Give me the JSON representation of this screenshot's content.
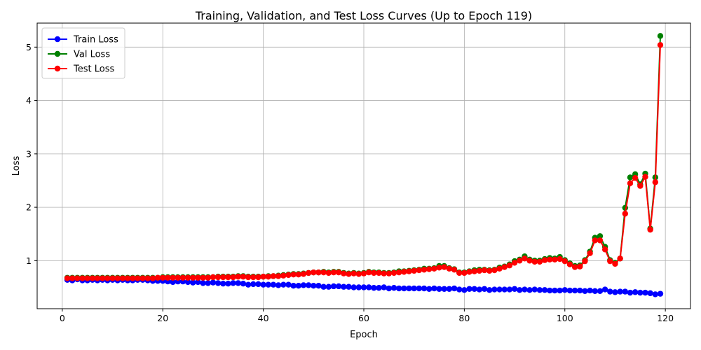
{
  "chart_data": {
    "type": "line",
    "title": "Training, Validation, and Test Loss Curves (Up to Epoch 119)",
    "xlabel": "Epoch",
    "ylabel": "Loss",
    "xlim": [
      -5,
      125
    ],
    "ylim": [
      0.1,
      5.45
    ],
    "xticks": [
      0,
      20,
      40,
      60,
      80,
      100,
      120
    ],
    "yticks": [
      1,
      2,
      3,
      4,
      5
    ],
    "grid": true,
    "legend_position": "upper-left",
    "x": [
      1,
      2,
      3,
      4,
      5,
      6,
      7,
      8,
      9,
      10,
      11,
      12,
      13,
      14,
      15,
      16,
      17,
      18,
      19,
      20,
      21,
      22,
      23,
      24,
      25,
      26,
      27,
      28,
      29,
      30,
      31,
      32,
      33,
      34,
      35,
      36,
      37,
      38,
      39,
      40,
      41,
      42,
      43,
      44,
      45,
      46,
      47,
      48,
      49,
      50,
      51,
      52,
      53,
      54,
      55,
      56,
      57,
      58,
      59,
      60,
      61,
      62,
      63,
      64,
      65,
      66,
      67,
      68,
      69,
      70,
      71,
      72,
      73,
      74,
      75,
      76,
      77,
      78,
      79,
      80,
      81,
      82,
      83,
      84,
      85,
      86,
      87,
      88,
      89,
      90,
      91,
      92,
      93,
      94,
      95,
      96,
      97,
      98,
      99,
      100,
      101,
      102,
      103,
      104,
      105,
      106,
      107,
      108,
      109,
      110,
      111,
      112,
      113,
      114,
      115,
      116,
      117,
      118,
      119
    ],
    "series": [
      {
        "name": "Train Loss",
        "color": "#0000ff",
        "values": [
          0.64,
          0.63,
          0.65,
          0.63,
          0.63,
          0.64,
          0.63,
          0.64,
          0.63,
          0.64,
          0.63,
          0.64,
          0.63,
          0.63,
          0.64,
          0.64,
          0.63,
          0.62,
          0.62,
          0.62,
          0.61,
          0.6,
          0.61,
          0.61,
          0.6,
          0.59,
          0.6,
          0.58,
          0.58,
          0.59,
          0.58,
          0.57,
          0.57,
          0.58,
          0.58,
          0.57,
          0.55,
          0.56,
          0.56,
          0.55,
          0.55,
          0.55,
          0.54,
          0.55,
          0.55,
          0.53,
          0.53,
          0.54,
          0.54,
          0.53,
          0.53,
          0.51,
          0.51,
          0.52,
          0.52,
          0.51,
          0.51,
          0.5,
          0.5,
          0.5,
          0.5,
          0.49,
          0.49,
          0.5,
          0.48,
          0.49,
          0.48,
          0.48,
          0.48,
          0.48,
          0.48,
          0.48,
          0.47,
          0.48,
          0.47,
          0.47,
          0.47,
          0.48,
          0.46,
          0.45,
          0.47,
          0.47,
          0.46,
          0.47,
          0.45,
          0.46,
          0.46,
          0.46,
          0.46,
          0.47,
          0.45,
          0.46,
          0.45,
          0.46,
          0.45,
          0.45,
          0.44,
          0.44,
          0.44,
          0.45,
          0.44,
          0.44,
          0.44,
          0.43,
          0.44,
          0.43,
          0.43,
          0.46,
          0.42,
          0.41,
          0.42,
          0.42,
          0.4,
          0.41,
          0.4,
          0.4,
          0.39,
          0.37,
          0.38
        ]
      },
      {
        "name": "Val Loss",
        "color": "#008000",
        "values": [
          0.68,
          0.68,
          0.68,
          0.68,
          0.68,
          0.68,
          0.68,
          0.68,
          0.68,
          0.68,
          0.68,
          0.68,
          0.68,
          0.68,
          0.68,
          0.68,
          0.68,
          0.68,
          0.68,
          0.69,
          0.69,
          0.69,
          0.69,
          0.69,
          0.69,
          0.69,
          0.69,
          0.69,
          0.69,
          0.69,
          0.7,
          0.7,
          0.7,
          0.7,
          0.71,
          0.71,
          0.7,
          0.7,
          0.7,
          0.7,
          0.71,
          0.71,
          0.72,
          0.73,
          0.74,
          0.75,
          0.75,
          0.76,
          0.77,
          0.78,
          0.78,
          0.79,
          0.78,
          0.79,
          0.79,
          0.77,
          0.76,
          0.77,
          0.76,
          0.77,
          0.79,
          0.78,
          0.78,
          0.77,
          0.77,
          0.78,
          0.8,
          0.8,
          0.81,
          0.82,
          0.83,
          0.85,
          0.85,
          0.86,
          0.9,
          0.9,
          0.86,
          0.84,
          0.78,
          0.78,
          0.8,
          0.82,
          0.83,
          0.83,
          0.82,
          0.83,
          0.87,
          0.89,
          0.93,
          0.99,
          1.02,
          1.08,
          1.02,
          1.0,
          1.0,
          1.03,
          1.05,
          1.04,
          1.07,
          1.01,
          0.95,
          0.9,
          0.91,
          1.01,
          1.17,
          1.43,
          1.46,
          1.26,
          1.01,
          0.96,
          1.04,
          1.99,
          2.56,
          2.62,
          2.43,
          2.63,
          1.6,
          2.56,
          5.21
        ]
      },
      {
        "name": "Test Loss",
        "color": "#ff0000",
        "values": [
          0.67,
          0.67,
          0.67,
          0.67,
          0.67,
          0.67,
          0.67,
          0.67,
          0.67,
          0.67,
          0.67,
          0.67,
          0.67,
          0.67,
          0.67,
          0.67,
          0.67,
          0.67,
          0.68,
          0.68,
          0.68,
          0.68,
          0.68,
          0.68,
          0.68,
          0.68,
          0.68,
          0.68,
          0.68,
          0.69,
          0.69,
          0.69,
          0.69,
          0.69,
          0.7,
          0.7,
          0.69,
          0.69,
          0.69,
          0.7,
          0.7,
          0.71,
          0.71,
          0.72,
          0.73,
          0.74,
          0.74,
          0.75,
          0.77,
          0.78,
          0.78,
          0.78,
          0.77,
          0.78,
          0.78,
          0.76,
          0.75,
          0.76,
          0.75,
          0.76,
          0.78,
          0.77,
          0.77,
          0.76,
          0.76,
          0.77,
          0.78,
          0.79,
          0.8,
          0.81,
          0.82,
          0.83,
          0.84,
          0.85,
          0.87,
          0.88,
          0.85,
          0.83,
          0.77,
          0.77,
          0.79,
          0.8,
          0.81,
          0.82,
          0.81,
          0.82,
          0.85,
          0.88,
          0.91,
          0.96,
          1.0,
          1.04,
          1.0,
          0.98,
          0.98,
          1.01,
          1.02,
          1.02,
          1.03,
          0.99,
          0.93,
          0.88,
          0.89,
          0.99,
          1.14,
          1.38,
          1.38,
          1.21,
          0.99,
          0.94,
          1.04,
          1.88,
          2.45,
          2.55,
          2.4,
          2.57,
          1.58,
          2.47,
          5.04
        ]
      }
    ]
  }
}
